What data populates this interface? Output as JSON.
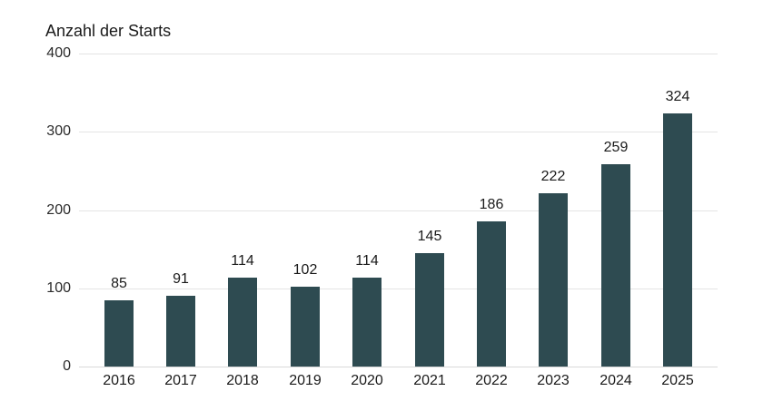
{
  "chart_data": {
    "type": "bar",
    "title": "Anzahl der Starts",
    "categories": [
      "2016",
      "2017",
      "2018",
      "2019",
      "2020",
      "2021",
      "2022",
      "2023",
      "2024",
      "2025"
    ],
    "values": [
      85,
      91,
      114,
      102,
      114,
      145,
      186,
      222,
      259,
      324
    ],
    "xlabel": "",
    "ylabel": "Anzahl der Starts",
    "ylim": [
      0,
      400
    ],
    "yticks": [
      0,
      100,
      200,
      300,
      400
    ],
    "grid": "horizontal",
    "legend": "none",
    "value_labels": "above bars",
    "colors": {
      "bar": "#2e4b51",
      "gridline": "#e4e4e4",
      "baseline": "#d9d9d9",
      "title_text": "#1a1a1a",
      "tick_text": "#2b2b2b",
      "value_text": "#1a1a1a",
      "background": "#ffffff"
    }
  }
}
